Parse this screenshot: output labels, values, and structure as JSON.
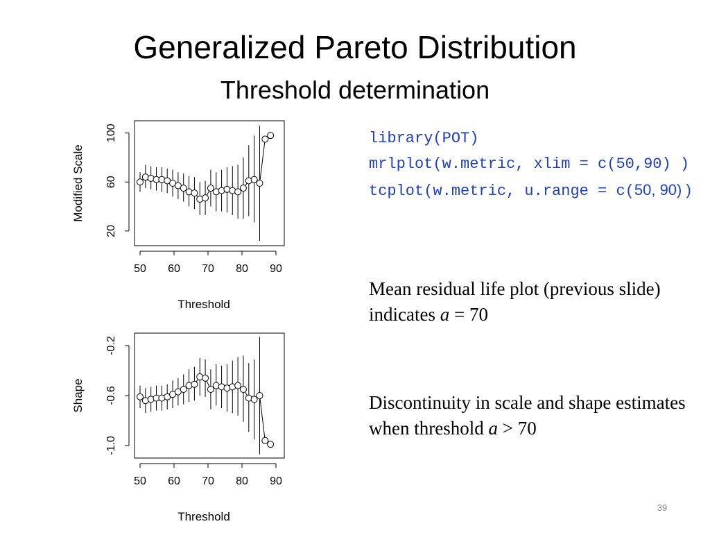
{
  "slide": {
    "title": "Generalized Pareto Distribution",
    "subtitle": "Threshold determination",
    "page_number": "39"
  },
  "code": {
    "line1": "library(POT)",
    "line2": "mrlplot(w.metric, xlim = c(50,90) )",
    "line3_code": "tcplot(w.metric, u.range = c(",
    "line3_tail": "50, 90) )"
  },
  "text": {
    "p1_part1": "Mean residual life plot (previous slide) indicates ",
    "p1_var": "a",
    "p1_part2": " = 70",
    "p2_part1": "Discontinuity in scale and shape estimates when threshold ",
    "p2_var": "a",
    "p2_part2": " > 70"
  },
  "chart_data": [
    {
      "type": "scatter",
      "title": "",
      "xlabel": "Threshold",
      "ylabel": "Modified Scale",
      "xlim": [
        49,
        91
      ],
      "ylim": [
        8,
        110
      ],
      "xticks": [
        "50",
        "60",
        "70",
        "80",
        "90"
      ],
      "yticks": [
        "20",
        "60",
        "100"
      ],
      "points": [
        {
          "x": 50.0,
          "y": 60,
          "lo": 52,
          "hi": 68
        },
        {
          "x": 51.6,
          "y": 64,
          "lo": 55,
          "hi": 74
        },
        {
          "x": 53.2,
          "y": 63,
          "lo": 54,
          "hi": 73
        },
        {
          "x": 54.8,
          "y": 62,
          "lo": 53,
          "hi": 72
        },
        {
          "x": 56.4,
          "y": 62,
          "lo": 52,
          "hi": 72
        },
        {
          "x": 58.0,
          "y": 61,
          "lo": 51,
          "hi": 71
        },
        {
          "x": 59.6,
          "y": 59,
          "lo": 48,
          "hi": 70
        },
        {
          "x": 61.2,
          "y": 57,
          "lo": 46,
          "hi": 68
        },
        {
          "x": 62.8,
          "y": 55,
          "lo": 44,
          "hi": 67
        },
        {
          "x": 64.4,
          "y": 52,
          "lo": 40,
          "hi": 65
        },
        {
          "x": 66.0,
          "y": 51,
          "lo": 38,
          "hi": 64
        },
        {
          "x": 67.6,
          "y": 46,
          "lo": 33,
          "hi": 60
        },
        {
          "x": 69.2,
          "y": 47,
          "lo": 33,
          "hi": 61
        },
        {
          "x": 70.8,
          "y": 55,
          "lo": 40,
          "hi": 70
        },
        {
          "x": 72.4,
          "y": 52,
          "lo": 36,
          "hi": 68
        },
        {
          "x": 74.0,
          "y": 53,
          "lo": 36,
          "hi": 70
        },
        {
          "x": 75.6,
          "y": 54,
          "lo": 35,
          "hi": 72
        },
        {
          "x": 77.2,
          "y": 53,
          "lo": 33,
          "hi": 73
        },
        {
          "x": 78.8,
          "y": 52,
          "lo": 30,
          "hi": 74
        },
        {
          "x": 80.4,
          "y": 55,
          "lo": 30,
          "hi": 80
        },
        {
          "x": 82.0,
          "y": 61,
          "lo": 32,
          "hi": 90
        },
        {
          "x": 83.6,
          "y": 62,
          "lo": 27,
          "hi": 98
        },
        {
          "x": 85.2,
          "y": 59,
          "lo": 12,
          "hi": 106
        },
        {
          "x": 86.8,
          "y": 95,
          "lo": null,
          "hi": null
        },
        {
          "x": 88.4,
          "y": 98,
          "lo": null,
          "hi": null
        }
      ]
    },
    {
      "type": "scatter",
      "title": "",
      "xlabel": "Threshold",
      "ylabel": "Shape",
      "xlim": [
        49,
        91
      ],
      "ylim": [
        -1.1,
        -0.1
      ],
      "xticks": [
        "50",
        "60",
        "70",
        "80",
        "90"
      ],
      "yticks": [
        "-1.0",
        "-0.6",
        "-0.2"
      ],
      "points": [
        {
          "x": 50.0,
          "y": -0.61,
          "lo": -0.7,
          "hi": -0.52
        },
        {
          "x": 51.6,
          "y": -0.64,
          "lo": -0.74,
          "hi": -0.54
        },
        {
          "x": 53.2,
          "y": -0.63,
          "lo": -0.73,
          "hi": -0.53
        },
        {
          "x": 54.8,
          "y": -0.62,
          "lo": -0.72,
          "hi": -0.52
        },
        {
          "x": 56.4,
          "y": -0.62,
          "lo": -0.72,
          "hi": -0.52
        },
        {
          "x": 58.0,
          "y": -0.61,
          "lo": -0.71,
          "hi": -0.51
        },
        {
          "x": 59.6,
          "y": -0.59,
          "lo": -0.7,
          "hi": -0.48
        },
        {
          "x": 61.2,
          "y": -0.57,
          "lo": -0.68,
          "hi": -0.46
        },
        {
          "x": 62.8,
          "y": -0.55,
          "lo": -0.67,
          "hi": -0.43
        },
        {
          "x": 64.4,
          "y": -0.52,
          "lo": -0.65,
          "hi": -0.39
        },
        {
          "x": 66.0,
          "y": -0.51,
          "lo": -0.64,
          "hi": -0.37
        },
        {
          "x": 67.6,
          "y": -0.45,
          "lo": -0.6,
          "hi": -0.3
        },
        {
          "x": 69.2,
          "y": -0.46,
          "lo": -0.61,
          "hi": -0.31
        },
        {
          "x": 70.8,
          "y": -0.55,
          "lo": -0.71,
          "hi": -0.39
        },
        {
          "x": 72.4,
          "y": -0.52,
          "lo": -0.68,
          "hi": -0.35
        },
        {
          "x": 74.0,
          "y": -0.53,
          "lo": -0.7,
          "hi": -0.36
        },
        {
          "x": 75.6,
          "y": -0.54,
          "lo": -0.73,
          "hi": -0.35
        },
        {
          "x": 77.2,
          "y": -0.53,
          "lo": -0.74,
          "hi": -0.32
        },
        {
          "x": 78.8,
          "y": -0.52,
          "lo": -0.76,
          "hi": -0.29
        },
        {
          "x": 80.4,
          "y": -0.55,
          "lo": -0.81,
          "hi": -0.28
        },
        {
          "x": 82.0,
          "y": -0.62,
          "lo": -0.89,
          "hi": -0.34
        },
        {
          "x": 83.6,
          "y": -0.63,
          "lo": -0.95,
          "hi": -0.31
        },
        {
          "x": 85.2,
          "y": -0.6,
          "lo": -1.07,
          "hi": -0.13
        },
        {
          "x": 86.8,
          "y": -0.96,
          "lo": null,
          "hi": null
        },
        {
          "x": 88.4,
          "y": -0.99,
          "lo": null,
          "hi": null
        }
      ]
    }
  ]
}
